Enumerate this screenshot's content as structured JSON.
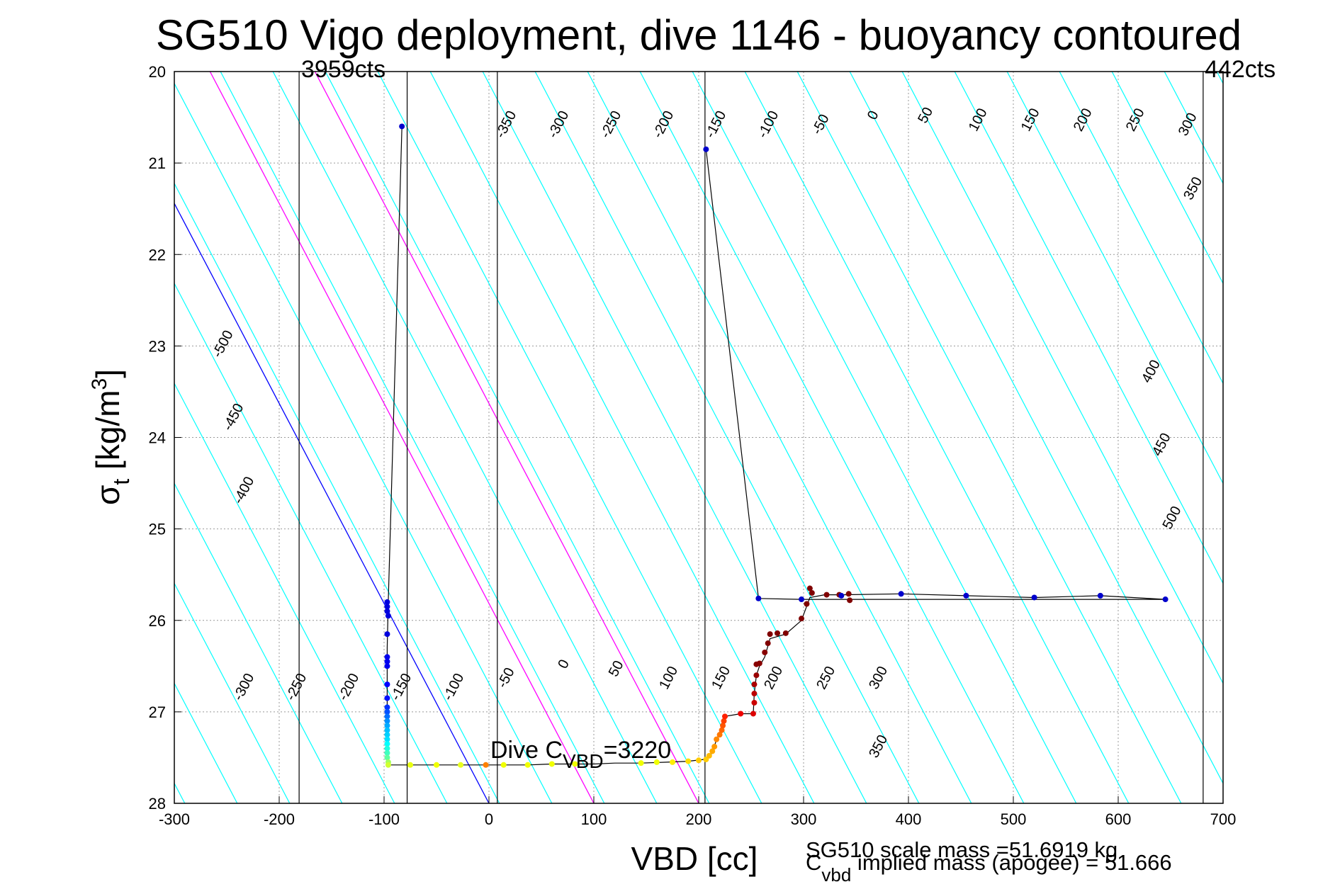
{
  "chart_data": {
    "type": "scatter",
    "title": "SG510 Vigo deployment, dive 1146 - buoyancy contoured",
    "xlabel": "VBD [cc]",
    "ylabel_main": "σ",
    "ylabel_sub": "t",
    "ylabel_unit": " [kg/m",
    "ylabel_sup": "3",
    "ylabel_close": "]",
    "xlim": [
      -300,
      700
    ],
    "ylim": [
      20,
      28
    ],
    "y_reversed": true,
    "grid": true,
    "x_ticks": [
      "-300",
      "-200",
      "-100",
      "0",
      "100",
      "200",
      "300",
      "400",
      "500",
      "600",
      "700"
    ],
    "y_ticks": [
      "20",
      "21",
      "22",
      "23",
      "24",
      "25",
      "26",
      "27",
      "28"
    ],
    "vertical_lines": [
      {
        "x": -181,
        "label": "3959cts"
      },
      {
        "x": -78,
        "label": ""
      },
      {
        "x": 8,
        "label": ""
      },
      {
        "x": 206,
        "label": ""
      },
      {
        "x": 681,
        "label": "442cts"
      }
    ],
    "contour_slope_sigma_per_cc": 0.02186,
    "contours": [
      {
        "level": -500,
        "color": "#00ffff",
        "x_at_28": -740
      },
      {
        "level": -450,
        "color": "#00ffff",
        "x_at_28": -690
      },
      {
        "level": -400,
        "color": "#00ffff",
        "x_at_28": -640
      },
      {
        "level": -350,
        "color": "#00ffff",
        "x_at_28": -590
      },
      {
        "level": -300,
        "color": "#00ffff",
        "x_at_28": -540
      },
      {
        "level": -250,
        "color": "#00ffff",
        "x_at_28": -490
      },
      {
        "level": -200,
        "color": "#00ffff",
        "x_at_28": -440
      },
      {
        "level": -150,
        "color": "#00ffff",
        "x_at_28": -390
      },
      {
        "level": -100,
        "color": "#00ffff",
        "x_at_28": -340
      },
      {
        "level": -50,
        "color": "#00ffff",
        "x_at_28": -290
      },
      {
        "level": 0,
        "color": "#00ffff",
        "x_at_28": -240
      },
      {
        "level": 50,
        "color": "#00ffff",
        "x_at_28": -190
      },
      {
        "level": 100,
        "color": "#00ffff",
        "x_at_28": -140
      },
      {
        "level": 150,
        "color": "#00ffff",
        "x_at_28": -90
      },
      {
        "level": 200,
        "color": "#00ffff",
        "x_at_28": -40
      },
      {
        "level": 250,
        "color": "#00ffff",
        "x_at_28": 10
      },
      {
        "level": 300,
        "color": "#00ffff",
        "x_at_28": 60
      },
      {
        "level": 350,
        "color": "#00ffff",
        "x_at_28": 110
      },
      {
        "level": 400,
        "color": "#00ffff",
        "x_at_28": 160
      },
      {
        "level": 450,
        "color": "#00ffff",
        "x_at_28": 210
      },
      {
        "level": 500,
        "color": "#00ffff",
        "x_at_28": 260
      },
      {
        "level": 550,
        "color": "#00ffff",
        "x_at_28": 310
      },
      {
        "level": 600,
        "color": "#00ffff",
        "x_at_28": 360
      },
      {
        "level": 650,
        "color": "#00ffff",
        "x_at_28": 410
      },
      {
        "level": 700,
        "color": "#00ffff",
        "x_at_28": 460
      },
      {
        "level": 750,
        "color": "#00ffff",
        "x_at_28": 510
      },
      {
        "level": 800,
        "color": "#00ffff",
        "x_at_28": 560
      },
      {
        "level": 850,
        "color": "#00ffff",
        "x_at_28": 610
      },
      {
        "level": 900,
        "color": "#00ffff",
        "x_at_28": 660
      },
      {
        "level": 950,
        "color": "#00ffff",
        "x_at_28": 710
      },
      {
        "level": 1000,
        "color": "#00ffff",
        "x_at_28": 760
      },
      {
        "level": 1050,
        "color": "#00ffff",
        "x_at_28": 810
      },
      {
        "level": 1100,
        "color": "#00ffff",
        "x_at_28": 860
      },
      {
        "level": 1150,
        "color": "#00ffff",
        "x_at_28": 910
      },
      {
        "level": 1200,
        "color": "#00ffff",
        "x_at_28": 960
      },
      {
        "level": 1250,
        "color": "#00ffff",
        "x_at_28": 1010
      },
      {
        "level": 1300,
        "color": "#00ffff",
        "x_at_28": 1060
      },
      {
        "level": 1350,
        "color": "#00ffff",
        "x_at_28": 1110
      },
      {
        "level": 1400,
        "color": "#00ffff",
        "x_at_28": 1160
      },
      {
        "level": 1450,
        "color": "#00ffff",
        "x_at_28": 1210
      }
    ],
    "special_lines": [
      {
        "color": "#0000ff",
        "x_at_28": 0
      },
      {
        "color": "#ff00ff",
        "x_at_28": 100
      },
      {
        "color": "#ff00ff",
        "x_at_28": 200
      }
    ],
    "contour_labels": [
      {
        "text": "-500",
        "x": -250,
        "y": 23.0
      },
      {
        "text": "-450",
        "x": -240,
        "y": 23.8
      },
      {
        "text": "-400",
        "x": -230,
        "y": 24.6
      },
      {
        "text": "-350",
        "x": 20,
        "y": 20.6
      },
      {
        "text": "-300",
        "x": 70,
        "y": 20.6
      },
      {
        "text": "-250",
        "x": 120,
        "y": 20.6
      },
      {
        "text": "-200",
        "x": 170,
        "y": 20.6
      },
      {
        "text": "-150",
        "x": 220,
        "y": 20.6
      },
      {
        "text": "-100",
        "x": 270,
        "y": 20.6
      },
      {
        "text": "-50",
        "x": 320,
        "y": 20.6
      },
      {
        "text": "0",
        "x": 370,
        "y": 20.5
      },
      {
        "text": "50",
        "x": 420,
        "y": 20.5
      },
      {
        "text": "100",
        "x": 470,
        "y": 20.55
      },
      {
        "text": "150",
        "x": 520,
        "y": 20.55
      },
      {
        "text": "200",
        "x": 570,
        "y": 20.55
      },
      {
        "text": "250",
        "x": 620,
        "y": 20.55
      },
      {
        "text": "300",
        "x": 670,
        "y": 20.6
      },
      {
        "text": "350",
        "x": 675,
        "y": 21.3
      },
      {
        "text": "400",
        "x": 635,
        "y": 23.3
      },
      {
        "text": "450",
        "x": 645,
        "y": 24.1
      },
      {
        "text": "500",
        "x": 655,
        "y": 24.9
      },
      {
        "text": "-300",
        "x": -230,
        "y": 26.75
      },
      {
        "text": "-250",
        "x": -180,
        "y": 26.75
      },
      {
        "text": "-200",
        "x": -130,
        "y": 26.75
      },
      {
        "text": "-150",
        "x": -80,
        "y": 26.75
      },
      {
        "text": "-100",
        "x": -30,
        "y": 26.75
      },
      {
        "text": "-50",
        "x": 20,
        "y": 26.65
      },
      {
        "text": "0",
        "x": 75,
        "y": 26.5
      },
      {
        "text": "50",
        "x": 125,
        "y": 26.55
      },
      {
        "text": "100",
        "x": 175,
        "y": 26.65
      },
      {
        "text": "150",
        "x": 225,
        "y": 26.65
      },
      {
        "text": "200",
        "x": 275,
        "y": 26.65
      },
      {
        "text": "250",
        "x": 325,
        "y": 26.65
      },
      {
        "text": "300",
        "x": 375,
        "y": 26.65
      },
      {
        "text": "350",
        "x": 375,
        "y": 27.4
      }
    ],
    "series": [
      {
        "color": "#000000",
        "points": [
          [
            -83,
            20.6
          ],
          [
            -96,
            25.8
          ],
          [
            -97,
            26.3
          ],
          [
            -97,
            27.0
          ],
          [
            -96,
            27.58
          ],
          [
            -75,
            27.58
          ],
          [
            -50,
            27.58
          ],
          [
            -27,
            27.58
          ],
          [
            -3,
            27.58
          ],
          [
            14,
            27.58
          ],
          [
            37,
            27.58
          ],
          [
            60,
            27.57
          ],
          [
            82,
            27.57
          ],
          [
            100,
            27.57
          ],
          [
            120,
            27.56
          ],
          [
            145,
            27.56
          ],
          [
            170,
            27.55
          ],
          [
            190,
            27.54
          ],
          [
            205,
            27.52
          ],
          [
            213,
            27.45
          ],
          [
            217,
            27.3
          ],
          [
            223,
            27.15
          ],
          [
            225,
            27.05
          ],
          [
            240,
            27.02
          ],
          [
            252,
            27.02
          ],
          [
            253,
            26.8
          ],
          [
            255,
            26.6
          ],
          [
            258,
            26.5
          ],
          [
            263,
            26.4
          ],
          [
            268,
            26.2
          ],
          [
            283,
            26.15
          ],
          [
            298,
            26.0
          ],
          [
            306,
            25.75
          ],
          [
            320,
            25.72
          ],
          [
            336,
            25.72
          ],
          [
            393,
            25.71
          ],
          [
            455,
            25.73
          ],
          [
            520,
            25.75
          ],
          [
            583,
            25.73
          ],
          [
            645,
            25.77
          ],
          [
            298,
            25.77
          ],
          [
            257,
            25.76
          ],
          [
            207,
            20.85
          ]
        ]
      }
    ],
    "points": [
      {
        "x": -83,
        "y": 20.6,
        "color": "#0000cc"
      },
      {
        "x": 207,
        "y": 20.85,
        "color": "#0000cc"
      },
      {
        "x": -97,
        "y": 25.8,
        "color": "#0000dd"
      },
      {
        "x": -97,
        "y": 25.85,
        "color": "#0000dd"
      },
      {
        "x": -97,
        "y": 25.9,
        "color": "#0000dd"
      },
      {
        "x": -96,
        "y": 25.95,
        "color": "#0000dd"
      },
      {
        "x": -97,
        "y": 26.15,
        "color": "#0000dd"
      },
      {
        "x": -97,
        "y": 26.4,
        "color": "#0000ee"
      },
      {
        "x": -97,
        "y": 26.45,
        "color": "#0000ee"
      },
      {
        "x": -97,
        "y": 26.5,
        "color": "#0000ee"
      },
      {
        "x": -97,
        "y": 26.7,
        "color": "#0000ff"
      },
      {
        "x": -97,
        "y": 26.85,
        "color": "#0010ff"
      },
      {
        "x": -97,
        "y": 26.95,
        "color": "#0030ff"
      },
      {
        "x": -97,
        "y": 27.0,
        "color": "#0050ff"
      },
      {
        "x": -97,
        "y": 27.05,
        "color": "#0070ff"
      },
      {
        "x": -97,
        "y": 27.1,
        "color": "#0090ff"
      },
      {
        "x": -97,
        "y": 27.15,
        "color": "#00aaff"
      },
      {
        "x": -97,
        "y": 27.2,
        "color": "#00c0ff"
      },
      {
        "x": -97,
        "y": 27.25,
        "color": "#00d0ff"
      },
      {
        "x": -97,
        "y": 27.3,
        "color": "#00e0ff"
      },
      {
        "x": -97,
        "y": 27.35,
        "color": "#00ffff"
      },
      {
        "x": -97,
        "y": 27.4,
        "color": "#20ffe0"
      },
      {
        "x": -97,
        "y": 27.45,
        "color": "#40ffc0"
      },
      {
        "x": -97,
        "y": 27.5,
        "color": "#60ffa0"
      },
      {
        "x": -96,
        "y": 27.55,
        "color": "#a0ff60"
      },
      {
        "x": -96,
        "y": 27.58,
        "color": "#d0ff30"
      },
      {
        "x": -75,
        "y": 27.58,
        "color": "#e8ff10"
      },
      {
        "x": -50,
        "y": 27.58,
        "color": "#f0ff00"
      },
      {
        "x": -27,
        "y": 27.58,
        "color": "#e8ff20"
      },
      {
        "x": -3,
        "y": 27.58,
        "color": "#ff8000"
      },
      {
        "x": 14,
        "y": 27.58,
        "color": "#f0ff00"
      },
      {
        "x": 37,
        "y": 27.58,
        "color": "#f0ff00"
      },
      {
        "x": 60,
        "y": 27.57,
        "color": "#f0ff00"
      },
      {
        "x": 82,
        "y": 27.57,
        "color": "#f0ff00"
      },
      {
        "x": 145,
        "y": 27.56,
        "color": "#f0ff00"
      },
      {
        "x": 160,
        "y": 27.55,
        "color": "#f0ff00"
      },
      {
        "x": 175,
        "y": 27.55,
        "color": "#ffee00"
      },
      {
        "x": 190,
        "y": 27.54,
        "color": "#ffdd00"
      },
      {
        "x": 200,
        "y": 27.53,
        "color": "#ffcc00"
      },
      {
        "x": 207,
        "y": 27.52,
        "color": "#ffcc00"
      },
      {
        "x": 210,
        "y": 27.48,
        "color": "#ffbb00"
      },
      {
        "x": 213,
        "y": 27.43,
        "color": "#ffaa00"
      },
      {
        "x": 215,
        "y": 27.38,
        "color": "#ff9900"
      },
      {
        "x": 217,
        "y": 27.3,
        "color": "#ff8800"
      },
      {
        "x": 220,
        "y": 27.25,
        "color": "#ff7700"
      },
      {
        "x": 222,
        "y": 27.2,
        "color": "#ff6600"
      },
      {
        "x": 223,
        "y": 27.15,
        "color": "#ff5500"
      },
      {
        "x": 224,
        "y": 27.1,
        "color": "#ff4000"
      },
      {
        "x": 225,
        "y": 27.05,
        "color": "#ff2000"
      },
      {
        "x": 240,
        "y": 27.02,
        "color": "#ee0000"
      },
      {
        "x": 252,
        "y": 27.02,
        "color": "#dd0000"
      },
      {
        "x": 253,
        "y": 26.9,
        "color": "#cc0000"
      },
      {
        "x": 253,
        "y": 26.8,
        "color": "#bb0000"
      },
      {
        "x": 253,
        "y": 26.7,
        "color": "#aa0000"
      },
      {
        "x": 255,
        "y": 26.6,
        "color": "#990000"
      },
      {
        "x": 255,
        "y": 26.48,
        "color": "#880000"
      },
      {
        "x": 258,
        "y": 26.47,
        "color": "#880000"
      },
      {
        "x": 263,
        "y": 26.35,
        "color": "#880000"
      },
      {
        "x": 266,
        "y": 26.25,
        "color": "#800000"
      },
      {
        "x": 268,
        "y": 26.15,
        "color": "#800000"
      },
      {
        "x": 275,
        "y": 26.14,
        "color": "#800000"
      },
      {
        "x": 283,
        "y": 26.14,
        "color": "#800000"
      },
      {
        "x": 298,
        "y": 25.98,
        "color": "#800000"
      },
      {
        "x": 303,
        "y": 25.82,
        "color": "#800000"
      },
      {
        "x": 306,
        "y": 25.65,
        "color": "#800000"
      },
      {
        "x": 308,
        "y": 25.7,
        "color": "#800000"
      },
      {
        "x": 322,
        "y": 25.72,
        "color": "#800000"
      },
      {
        "x": 334,
        "y": 25.72,
        "color": "#800000"
      },
      {
        "x": 343,
        "y": 25.71,
        "color": "#800000"
      },
      {
        "x": 344,
        "y": 25.78,
        "color": "#800000"
      },
      {
        "x": 257,
        "y": 25.76,
        "color": "#0000cc"
      },
      {
        "x": 298,
        "y": 25.77,
        "color": "#0000cc"
      },
      {
        "x": 336,
        "y": 25.73,
        "color": "#0000cc"
      },
      {
        "x": 393,
        "y": 25.71,
        "color": "#0000cc"
      },
      {
        "x": 455,
        "y": 25.73,
        "color": "#0000cc"
      },
      {
        "x": 520,
        "y": 25.75,
        "color": "#0000cc"
      },
      {
        "x": 583,
        "y": 25.73,
        "color": "#0000cc"
      },
      {
        "x": 645,
        "y": 25.77,
        "color": "#0000cc"
      }
    ],
    "annotations": {
      "dive_cvbd_prefix": "Dive C",
      "dive_cvbd_sub": "VBD",
      "dive_cvbd_value": "=3220",
      "scale_mass": "SG510 scale mass =51.6919 kg",
      "implied_prefix": "C",
      "implied_sub": "vbd",
      "implied_text": " implied mass (apogee) = 51.666"
    }
  }
}
